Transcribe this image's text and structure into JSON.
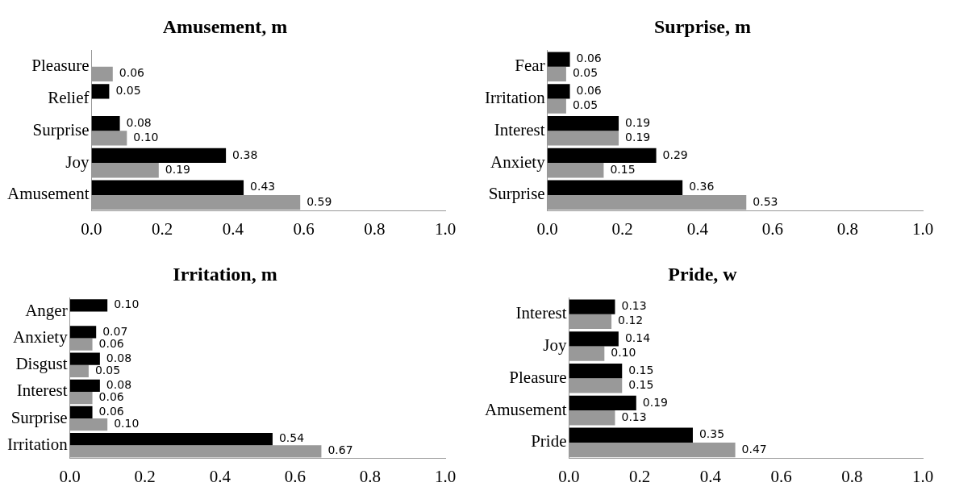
{
  "chart_data": [
    {
      "type": "bar",
      "orientation": "horizontal",
      "title": "Amusement, m",
      "categories": [
        "Pleasure",
        "Relief",
        "Surprise",
        "Joy",
        "Amusement"
      ],
      "xlim": [
        0,
        1
      ],
      "xticks": [
        {
          "value": 0,
          "label": "0.0"
        },
        {
          "value": 0.2,
          "label": "0.2"
        },
        {
          "value": 0.4,
          "label": "0.4"
        },
        {
          "value": 0.6,
          "label": "0.6"
        },
        {
          "value": 0.8,
          "label": "0.8"
        },
        {
          "value": 1,
          "label": "1.0"
        }
      ],
      "grid": false,
      "legend": false,
      "series": [
        {
          "color": "#000000",
          "values": [
            null,
            0.05,
            0.08,
            0.38,
            0.43
          ],
          "value_labels": [
            null,
            "0.05",
            "0.08",
            "0.38",
            "0.43"
          ]
        },
        {
          "color": "#999999",
          "values": [
            0.06,
            null,
            0.1,
            0.19,
            0.59
          ],
          "value_labels": [
            "0.06",
            null,
            "0.10",
            "0.19",
            "0.59"
          ]
        }
      ]
    },
    {
      "type": "bar",
      "orientation": "horizontal",
      "title": "Surprise, m",
      "categories": [
        "Fear",
        "Irritation",
        "Interest",
        "Anxiety",
        "Surprise"
      ],
      "xlim": [
        0,
        1
      ],
      "xticks": [
        {
          "value": 0,
          "label": "0.0"
        },
        {
          "value": 0.2,
          "label": "0.2"
        },
        {
          "value": 0.4,
          "label": "0.4"
        },
        {
          "value": 0.6,
          "label": "0.6"
        },
        {
          "value": 0.8,
          "label": "0.8"
        },
        {
          "value": 1,
          "label": "1.0"
        }
      ],
      "grid": false,
      "legend": false,
      "series": [
        {
          "color": "#000000",
          "values": [
            0.06,
            0.06,
            0.19,
            0.29,
            0.36
          ],
          "value_labels": [
            "0.06",
            "0.06",
            "0.19",
            "0.29",
            "0.36"
          ]
        },
        {
          "color": "#999999",
          "values": [
            0.05,
            0.05,
            0.19,
            0.15,
            0.53
          ],
          "value_labels": [
            "0.05",
            "0.05",
            "0.19",
            "0.15",
            "0.53"
          ]
        }
      ]
    },
    {
      "type": "bar",
      "orientation": "horizontal",
      "title": "Irritation, m",
      "categories": [
        "Anger",
        "Anxiety",
        "Disgust",
        "Interest",
        "Surprise",
        "Irritation"
      ],
      "xlim": [
        0,
        1
      ],
      "xticks": [
        {
          "value": 0,
          "label": "0.0"
        },
        {
          "value": 0.2,
          "label": "0.2"
        },
        {
          "value": 0.4,
          "label": "0.4"
        },
        {
          "value": 0.6,
          "label": "0.6"
        },
        {
          "value": 0.8,
          "label": "0.8"
        },
        {
          "value": 1,
          "label": "1.0"
        }
      ],
      "grid": false,
      "legend": false,
      "series": [
        {
          "color": "#000000",
          "values": [
            0.1,
            0.07,
            0.08,
            0.08,
            0.06,
            0.54
          ],
          "value_labels": [
            "0.10",
            "0.07",
            "0.08",
            "0.08",
            "0.06",
            "0.54"
          ]
        },
        {
          "color": "#999999",
          "values": [
            null,
            0.06,
            0.05,
            0.06,
            0.1,
            0.67
          ],
          "value_labels": [
            null,
            "0.06",
            "0.05",
            "0.06",
            "0.10",
            "0.67"
          ]
        }
      ]
    },
    {
      "type": "bar",
      "orientation": "horizontal",
      "title": "Pride, w",
      "categories": [
        "Interest",
        "Joy",
        "Pleasure",
        "Amusement",
        "Pride"
      ],
      "xlim": [
        0,
        1
      ],
      "xticks": [
        {
          "value": 0,
          "label": "0.0"
        },
        {
          "value": 0.2,
          "label": "0.2"
        },
        {
          "value": 0.4,
          "label": "0.4"
        },
        {
          "value": 0.6,
          "label": "0.6"
        },
        {
          "value": 0.8,
          "label": "0.8"
        },
        {
          "value": 1,
          "label": "1.0"
        }
      ],
      "grid": false,
      "legend": false,
      "series": [
        {
          "color": "#000000",
          "values": [
            0.13,
            0.14,
            0.15,
            0.19,
            0.35
          ],
          "value_labels": [
            "0.13",
            "0.14",
            "0.15",
            "0.19",
            "0.35"
          ]
        },
        {
          "color": "#999999",
          "values": [
            0.12,
            0.1,
            0.15,
            0.13,
            0.47
          ],
          "value_labels": [
            "0.12",
            "0.10",
            "0.15",
            "0.13",
            "0.47"
          ]
        }
      ]
    }
  ]
}
